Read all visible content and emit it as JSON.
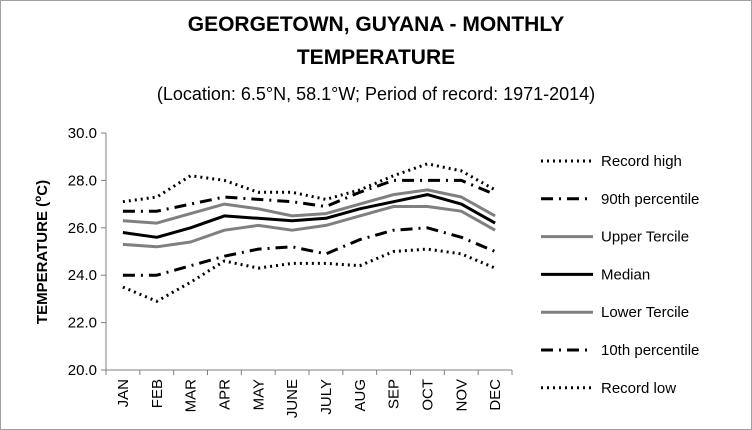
{
  "chart_data": {
    "type": "line",
    "title_line1": "GEORGETOWN, GUYANA - MONTHLY",
    "title_line2": "TEMPERATURE",
    "subtitle": "(Location: 6.5°N, 58.1°W; Period of record: 1971-2014)",
    "ylabel_prefix": "TEMPERATURE (",
    "ylabel_sup": "o",
    "ylabel_suffix": "C)",
    "xlabel": "",
    "categories": [
      "JAN",
      "FEB",
      "MAR",
      "APR",
      "MAY",
      "JUNE",
      "JULY",
      "AUG",
      "SEP",
      "OCT",
      "NOV",
      "DEC"
    ],
    "ylim": [
      20.0,
      30.0
    ],
    "yticks": [
      "20.0",
      "22.0",
      "24.0",
      "26.0",
      "28.0",
      "30.0"
    ],
    "grid": false,
    "legend_position": "right",
    "series": [
      {
        "name": "Record high",
        "color": "#000000",
        "style": "dotted",
        "width": 3,
        "values": [
          27.1,
          27.3,
          28.2,
          28.0,
          27.5,
          27.5,
          27.2,
          27.6,
          28.2,
          28.7,
          28.4,
          27.6
        ]
      },
      {
        "name": "90th percentile",
        "color": "#000000",
        "style": "dashdot",
        "width": 3,
        "values": [
          26.7,
          26.7,
          27.0,
          27.3,
          27.2,
          27.1,
          26.9,
          27.5,
          28.0,
          28.0,
          28.0,
          27.4
        ]
      },
      {
        "name": "Upper Tercile",
        "color": "#808080",
        "style": "solid",
        "width": 3,
        "values": [
          26.3,
          26.2,
          26.6,
          27.0,
          26.8,
          26.5,
          26.6,
          27.0,
          27.4,
          27.6,
          27.3,
          26.5
        ]
      },
      {
        "name": "Median",
        "color": "#000000",
        "style": "solid",
        "width": 3,
        "values": [
          25.8,
          25.6,
          26.0,
          26.5,
          26.4,
          26.3,
          26.4,
          26.8,
          27.1,
          27.4,
          27.0,
          26.2
        ]
      },
      {
        "name": "Lower Tercile",
        "color": "#808080",
        "style": "solid",
        "width": 3,
        "values": [
          25.3,
          25.2,
          25.4,
          25.9,
          26.1,
          25.9,
          26.1,
          26.5,
          26.9,
          26.9,
          26.7,
          25.9
        ]
      },
      {
        "name": "10th percentile",
        "color": "#000000",
        "style": "dashdot",
        "width": 3,
        "values": [
          24.0,
          24.0,
          24.4,
          24.8,
          25.1,
          25.2,
          24.9,
          25.5,
          25.9,
          26.0,
          25.6,
          25.0
        ]
      },
      {
        "name": "Record low",
        "color": "#000000",
        "style": "dotted",
        "width": 3,
        "values": [
          23.5,
          22.9,
          23.7,
          24.6,
          24.3,
          24.5,
          24.5,
          24.4,
          25.0,
          25.1,
          24.9,
          24.3
        ]
      }
    ]
  }
}
